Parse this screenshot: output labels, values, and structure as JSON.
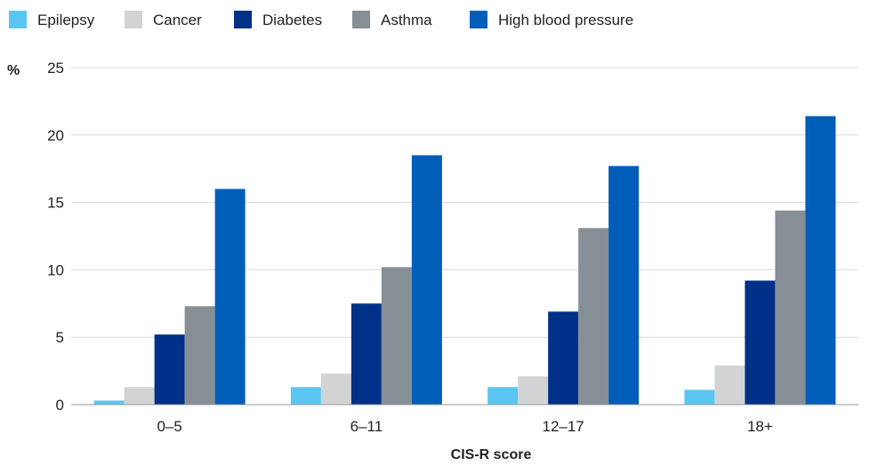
{
  "chart_data": {
    "type": "bar",
    "categories": [
      "0–5",
      "6–11",
      "12–17",
      "18+"
    ],
    "series": [
      {
        "name": "Epilepsy",
        "color": "#5bc5f2",
        "values": [
          0.3,
          1.3,
          1.3,
          1.1
        ]
      },
      {
        "name": "Cancer",
        "color": "#d1d3d4",
        "values": [
          1.3,
          2.3,
          2.1,
          2.9
        ]
      },
      {
        "name": "Diabetes",
        "color": "#003087",
        "values": [
          5.2,
          7.5,
          6.9,
          9.2
        ]
      },
      {
        "name": "Asthma",
        "color": "#868e96",
        "values": [
          7.3,
          10.2,
          13.1,
          14.4
        ]
      },
      {
        "name": "High blood pressure",
        "color": "#005eb8",
        "values": [
          16.0,
          18.5,
          17.7,
          21.4
        ]
      }
    ],
    "title": "",
    "xlabel": "CIS-R score",
    "ylabel": "%",
    "ylim": [
      0,
      25
    ],
    "yticks": [
      0,
      5,
      10,
      15,
      20,
      25
    ],
    "grid": true,
    "legend_position": "top-left"
  }
}
